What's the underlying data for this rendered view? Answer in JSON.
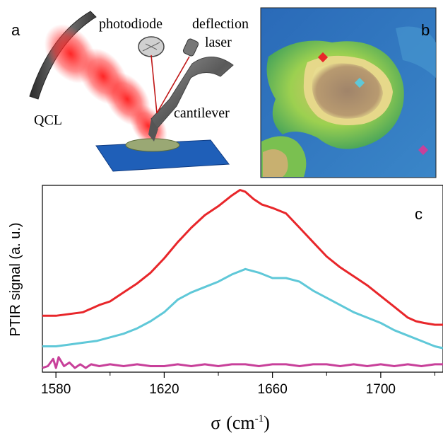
{
  "schematic": {
    "panel_letter": "a",
    "labels": {
      "photodiode": "photodiode",
      "deflection": "deflection",
      "laser": "laser",
      "qcl": "QCL",
      "cantilever": "cantilever"
    },
    "colors": {
      "beam": "#ff2020",
      "mirror": "#555555",
      "substrate": "#1f5fb8",
      "cantilever": "#707070"
    }
  },
  "topography": {
    "panel_letter": "b",
    "markers": [
      {
        "name": "red-marker",
        "color": "#e8262a"
      },
      {
        "name": "cyan-marker",
        "color": "#5fc8d8"
      },
      {
        "name": "magenta-marker",
        "color": "#c8409a"
      }
    ]
  },
  "chart_data": {
    "type": "line",
    "panel_letter": "c",
    "title": "",
    "xlabel_symbol": "σ",
    "xlabel_unit_open": "(cm",
    "xlabel_unit_exp": "-1",
    "xlabel_unit_close": ")",
    "ylabel": "PTIR signal (a. u.)",
    "xlim": [
      1575,
      1723
    ],
    "ylim": [
      0,
      1
    ],
    "xticks": [
      1580,
      1620,
      1660,
      1700
    ],
    "grid": false,
    "legend": "none",
    "series": [
      {
        "color": "#e8262a",
        "x": [
          1575,
          1580,
          1585,
          1590,
          1593,
          1596,
          1600,
          1605,
          1610,
          1615,
          1620,
          1625,
          1630,
          1635,
          1640,
          1645,
          1648,
          1650,
          1653,
          1656,
          1660,
          1665,
          1670,
          1675,
          1680,
          1685,
          1690,
          1695,
          1700,
          1705,
          1710,
          1713,
          1716,
          1720,
          1723
        ],
        "y": [
          0.29,
          0.29,
          0.3,
          0.31,
          0.33,
          0.35,
          0.37,
          0.42,
          0.47,
          0.53,
          0.61,
          0.7,
          0.78,
          0.85,
          0.9,
          0.96,
          0.99,
          0.98,
          0.94,
          0.91,
          0.89,
          0.86,
          0.78,
          0.7,
          0.62,
          0.56,
          0.51,
          0.46,
          0.4,
          0.34,
          0.28,
          0.26,
          0.25,
          0.24,
          0.24
        ]
      },
      {
        "color": "#5fc8d8",
        "x": [
          1575,
          1580,
          1585,
          1590,
          1595,
          1600,
          1605,
          1610,
          1615,
          1620,
          1625,
          1630,
          1635,
          1640,
          1645,
          1650,
          1655,
          1660,
          1665,
          1670,
          1675,
          1680,
          1685,
          1690,
          1695,
          1700,
          1705,
          1710,
          1715,
          1720,
          1723
        ],
        "y": [
          0.12,
          0.12,
          0.13,
          0.14,
          0.15,
          0.17,
          0.19,
          0.22,
          0.26,
          0.31,
          0.38,
          0.42,
          0.45,
          0.48,
          0.52,
          0.55,
          0.53,
          0.5,
          0.5,
          0.48,
          0.43,
          0.39,
          0.35,
          0.31,
          0.28,
          0.25,
          0.21,
          0.18,
          0.15,
          0.12,
          0.11
        ]
      },
      {
        "color": "#c8409a",
        "x": [
          1575,
          1577,
          1579,
          1580,
          1581,
          1583,
          1585,
          1587,
          1589,
          1591,
          1593,
          1596,
          1600,
          1605,
          1610,
          1615,
          1620,
          1625,
          1630,
          1635,
          1640,
          1645,
          1650,
          1655,
          1660,
          1665,
          1670,
          1675,
          1680,
          1685,
          1690,
          1695,
          1700,
          1705,
          1710,
          1715,
          1720,
          1723
        ],
        "y": [
          0.0,
          0.01,
          0.05,
          0.0,
          0.06,
          0.01,
          0.03,
          0.0,
          0.02,
          0.0,
          0.02,
          0.01,
          0.02,
          0.01,
          0.02,
          0.01,
          0.01,
          0.02,
          0.01,
          0.02,
          0.01,
          0.02,
          0.02,
          0.01,
          0.02,
          0.02,
          0.01,
          0.02,
          0.02,
          0.01,
          0.02,
          0.01,
          0.02,
          0.01,
          0.02,
          0.01,
          0.02,
          0.02
        ]
      }
    ]
  }
}
